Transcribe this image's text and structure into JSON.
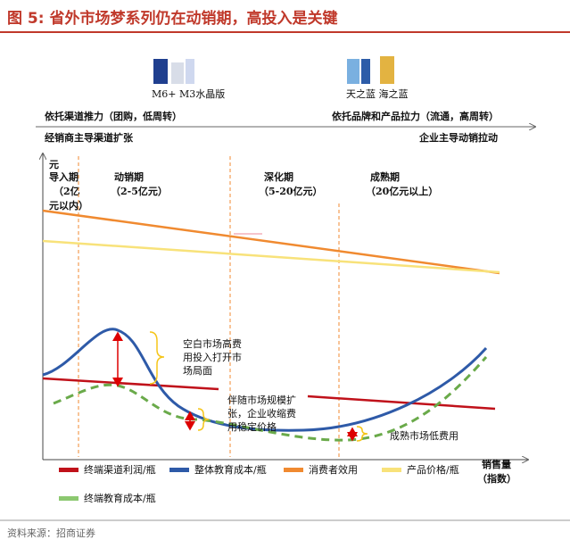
{
  "header": {
    "title": "图 5: 省外市场梦系列仍在动销期，高投入是关键"
  },
  "products": [
    {
      "label": "M6+  M3水晶版"
    },
    {
      "label": "天之蓝 海之蓝"
    }
  ],
  "drivers": {
    "left": "依托渠道推力（团购，低周转）",
    "right": "依托品牌和产品拉力（流通，高周转）",
    "left_sub": "经销商主导渠道扩张",
    "right_sub": "企业主导动销拉动"
  },
  "axes": {
    "y_label": "元",
    "x_label": [
      "销售量",
      "（指数）"
    ]
  },
  "phases": [
    {
      "name": "导入期",
      "range": [
        "（2亿",
        "元以内）"
      ]
    },
    {
      "name": "动销期",
      "range": [
        "（2-5亿元）"
      ]
    },
    {
      "name": "深化期",
      "range": [
        "（5-20亿元）"
      ]
    },
    {
      "name": "成熟期",
      "range": [
        "（20亿元以上）"
      ]
    }
  ],
  "annotations": [
    [
      "空白市场高费",
      "用投入打开市",
      "场局面"
    ],
    [
      "伴随市场规模扩",
      "张，企业收缩费",
      "用稳定价格"
    ],
    [
      "成熟市场低费用"
    ]
  ],
  "legend": [
    "终端渠道利润/瓶",
    "整体教育成本/瓶",
    "消费者效用",
    "产品价格/瓶",
    "终端教育成本/瓶"
  ],
  "source": "资料来源：招商证券"
}
